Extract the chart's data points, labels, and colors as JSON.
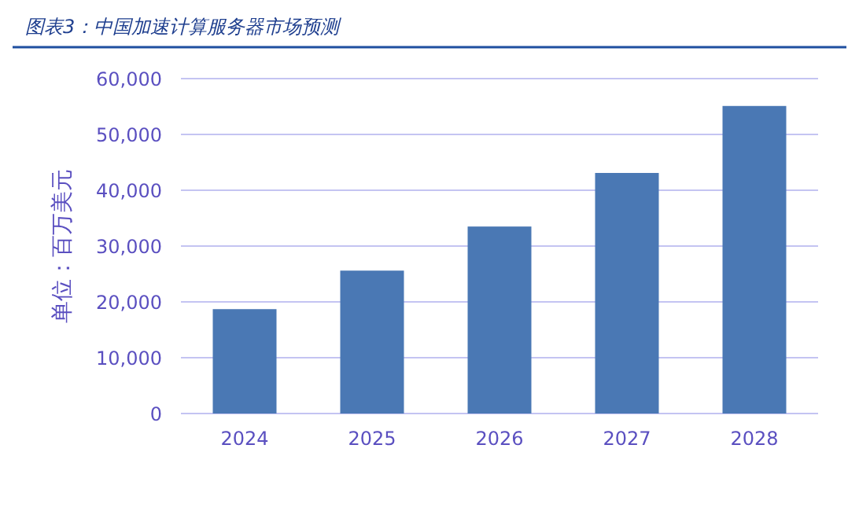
{
  "chart_data": {
    "type": "bar",
    "title": "图表3：中国加速计算服务器市场预测",
    "ylabel": "单位：百万美元",
    "categories": [
      "2024",
      "2025",
      "2026",
      "2027",
      "2028"
    ],
    "values": [
      18700,
      25600,
      33500,
      43100,
      55100
    ],
    "color": "#4a78b4",
    "ylim": [
      0,
      60000
    ],
    "yticks": [
      {
        "value": 0,
        "label": "0"
      },
      {
        "value": 10000,
        "label": "10,000"
      },
      {
        "value": 20000,
        "label": "20,000"
      },
      {
        "value": 30000,
        "label": "30,000"
      },
      {
        "value": 40000,
        "label": "40,000"
      },
      {
        "value": 50000,
        "label": "50,000"
      },
      {
        "value": 60000,
        "label": "60,000"
      }
    ],
    "grid": "y"
  }
}
